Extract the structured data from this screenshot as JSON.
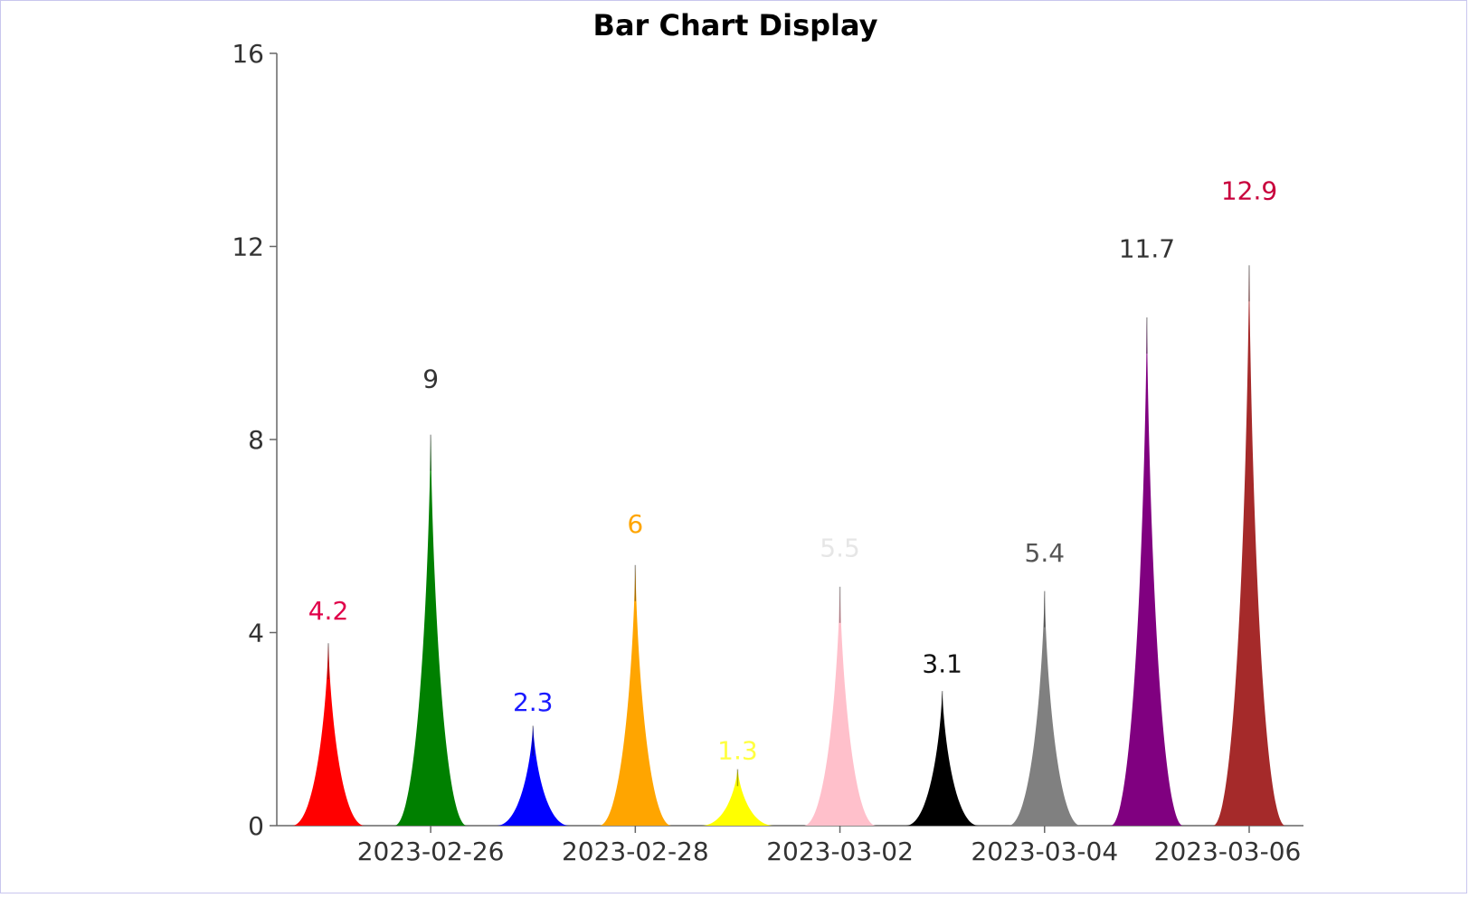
{
  "chart_data": {
    "type": "bar",
    "title": "Bar Chart Display",
    "xlabel": "",
    "ylabel": "",
    "ylim": [
      0,
      16
    ],
    "yticks": [
      "0",
      "4",
      "8",
      "12",
      "16"
    ],
    "x": [
      "2023-02-25",
      "2023-02-26",
      "2023-02-27",
      "2023-02-28",
      "2023-03-01",
      "2023-03-02",
      "2023-03-03",
      "2023-03-04",
      "2023-03-05",
      "2023-03-06"
    ],
    "xtick_labels": [
      "2023-02-26",
      "2023-02-28",
      "2023-03-02",
      "2023-03-04",
      "2023-03-06"
    ],
    "xtick_dates": [
      "2023-02-26",
      "2023-02-28",
      "2023-03-02",
      "2023-03-04",
      "2023-03-06"
    ],
    "values": [
      4.2,
      9,
      2.3,
      6,
      1.3,
      5.5,
      3.1,
      5.4,
      11.7,
      12.9
    ],
    "data_labels": [
      "4.2",
      "9",
      "2.3",
      "6",
      "1.3",
      "5.5",
      "3.1",
      "5.4",
      "11.7",
      "12.9"
    ],
    "colors": [
      "#ff0000",
      "#008000",
      "#0000ff",
      "#ffa500",
      "#ffff00",
      "#ffc0cb",
      "#000000",
      "#808080",
      "#800080",
      "#a52a2a"
    ],
    "label_colors": [
      "#e0004a",
      "#333333",
      "#1a1aff",
      "#ffa500",
      "#ffff40",
      "#e6e6e6",
      "#111111",
      "#555555",
      "#333333",
      "#c8003c"
    ],
    "grid": false,
    "legend": "none"
  }
}
